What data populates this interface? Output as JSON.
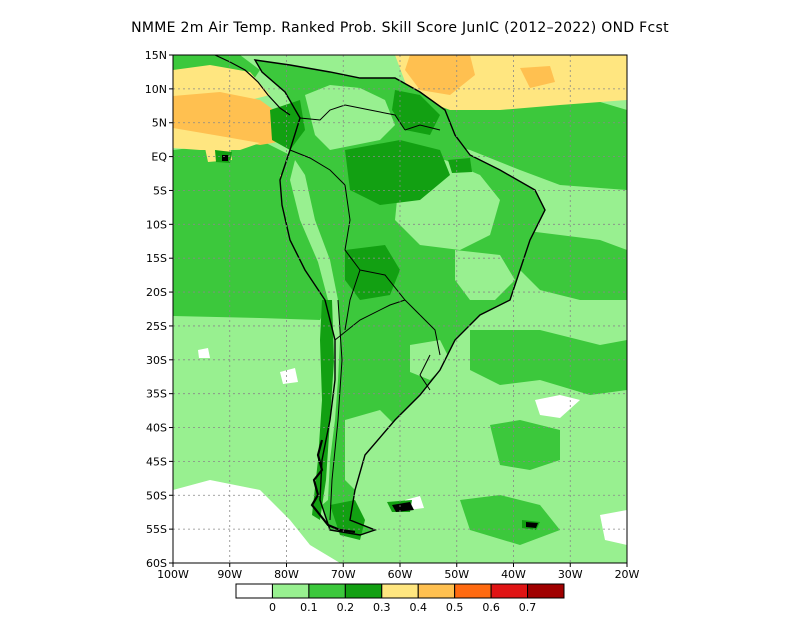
{
  "title": "NMME  2m Air Temp. Ranked Prob. Skill Score JunIC (2012–2022) OND Fcst",
  "map": {
    "lat_labels": [
      "15N",
      "10N",
      "5N",
      "EQ",
      "5S",
      "10S",
      "15S",
      "20S",
      "25S",
      "30S",
      "35S",
      "40S",
      "45S",
      "50S",
      "55S",
      "60S"
    ],
    "lon_labels": [
      "100W",
      "90W",
      "80W",
      "70W",
      "60W",
      "50W",
      "40W",
      "30W",
      "20W"
    ],
    "colors": {
      "ocean_light": "#98f090",
      "land_mid": "#3cc83c",
      "dark_green": "#12a012",
      "yellow": "#ffe680",
      "orange": "#ffc050",
      "white": "#ffffff",
      "coast": "#000000"
    }
  },
  "colorbar": {
    "levels": [
      "0",
      "0.1",
      "0.2",
      "0.3",
      "0.4",
      "0.5",
      "0.6",
      "0.7"
    ],
    "colors": [
      "#ffffff",
      "#98f090",
      "#3cc83c",
      "#12a012",
      "#ffe680",
      "#ffc050",
      "#ff6a10",
      "#e01414",
      "#a00000"
    ]
  }
}
